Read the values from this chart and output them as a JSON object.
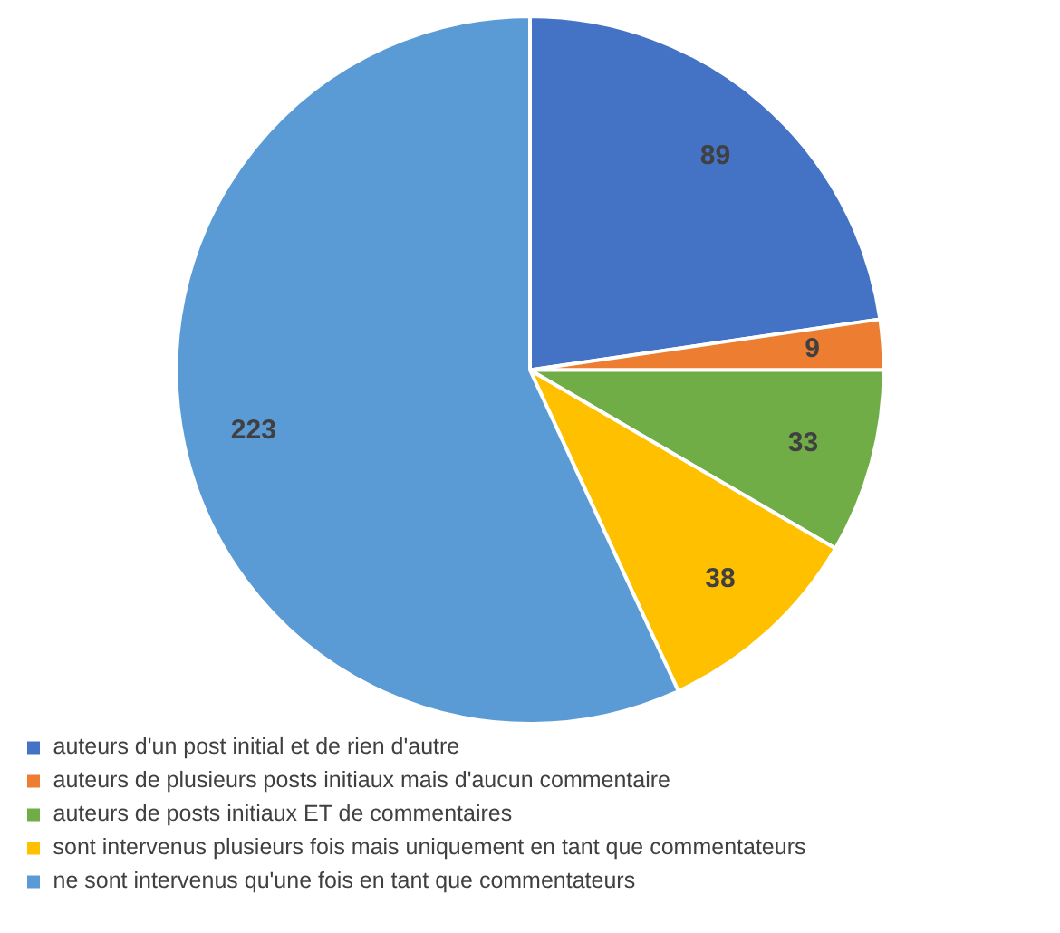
{
  "chart_data": {
    "type": "pie",
    "categories": [
      "auteurs d'un post initial et de rien d'autre",
      "auteurs de plusieurs posts initiaux mais d'aucun commentaire",
      "auteurs de posts initiaux ET de commentaires",
      "sont intervenus plusieurs fois mais uniquement en tant que commentateurs",
      "ne sont intervenus qu'une fois en tant que commentateurs"
    ],
    "values": [
      89,
      9,
      33,
      38,
      223
    ],
    "colors": [
      "#4472c4",
      "#ed7d31",
      "#70ad47",
      "#ffc000",
      "#5b9bd5"
    ],
    "data_labels": true,
    "legend": "bottom"
  }
}
